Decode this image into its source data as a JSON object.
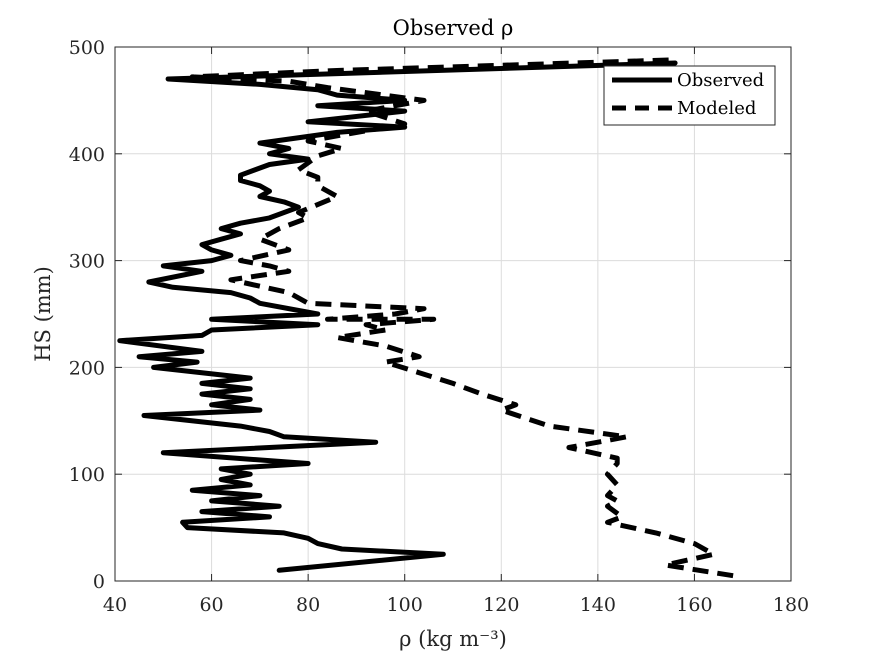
{
  "chart_data": {
    "type": "line",
    "title": "Observed ρ",
    "xlabel": "ρ (kg m⁻³)",
    "ylabel": "HS (mm)",
    "xlim": [
      40,
      180
    ],
    "ylim": [
      0,
      500
    ],
    "xticks": [
      40,
      60,
      80,
      100,
      120,
      140,
      160,
      180
    ],
    "yticks": [
      0,
      100,
      200,
      300,
      400,
      500
    ],
    "grid": true,
    "legend_position": "top-right",
    "series": [
      {
        "name": "Observed",
        "style": "solid",
        "color": "#000000",
        "points": [
          [
            74,
            10
          ],
          [
            108,
            25
          ],
          [
            87,
            30
          ],
          [
            82,
            35
          ],
          [
            80,
            40
          ],
          [
            75,
            45
          ],
          [
            55,
            50
          ],
          [
            54,
            55
          ],
          [
            72,
            60
          ],
          [
            58,
            65
          ],
          [
            74,
            70
          ],
          [
            60,
            75
          ],
          [
            70,
            80
          ],
          [
            56,
            85
          ],
          [
            68,
            90
          ],
          [
            62,
            95
          ],
          [
            68,
            100
          ],
          [
            62,
            105
          ],
          [
            80,
            110
          ],
          [
            50,
            120
          ],
          [
            94,
            130
          ],
          [
            75,
            135
          ],
          [
            72,
            140
          ],
          [
            66,
            145
          ],
          [
            46,
            155
          ],
          [
            70,
            160
          ],
          [
            60,
            165
          ],
          [
            68,
            170
          ],
          [
            58,
            175
          ],
          [
            68,
            180
          ],
          [
            58,
            185
          ],
          [
            68,
            190
          ],
          [
            48,
            200
          ],
          [
            57,
            205
          ],
          [
            45,
            210
          ],
          [
            58,
            215
          ],
          [
            41,
            225
          ],
          [
            58,
            230
          ],
          [
            60,
            235
          ],
          [
            82,
            240
          ],
          [
            60,
            245
          ],
          [
            82,
            250
          ],
          [
            70,
            260
          ],
          [
            68,
            265
          ],
          [
            64,
            270
          ],
          [
            52,
            275
          ],
          [
            47,
            280
          ],
          [
            58,
            290
          ],
          [
            50,
            295
          ],
          [
            60,
            300
          ],
          [
            64,
            305
          ],
          [
            60,
            310
          ],
          [
            58,
            315
          ],
          [
            62,
            320
          ],
          [
            66,
            325
          ],
          [
            62,
            330
          ],
          [
            66,
            335
          ],
          [
            72,
            340
          ],
          [
            78,
            350
          ],
          [
            75,
            355
          ],
          [
            70,
            360
          ],
          [
            72,
            365
          ],
          [
            70,
            370
          ],
          [
            66,
            375
          ],
          [
            66,
            380
          ],
          [
            72,
            390
          ],
          [
            80,
            395
          ],
          [
            72,
            400
          ],
          [
            76,
            405
          ],
          [
            70,
            410
          ],
          [
            86,
            420
          ],
          [
            100,
            425
          ],
          [
            80,
            430
          ],
          [
            100,
            440
          ],
          [
            82,
            445
          ],
          [
            100,
            450
          ],
          [
            86,
            455
          ],
          [
            82,
            460
          ],
          [
            70,
            465
          ],
          [
            51,
            470
          ],
          [
            156,
            485
          ]
        ]
      },
      {
        "name": "Modeled",
        "style": "dashed",
        "color": "#000000",
        "points": [
          [
            168,
            5
          ],
          [
            154,
            15
          ],
          [
            164,
            25
          ],
          [
            160,
            35
          ],
          [
            152,
            45
          ],
          [
            142,
            55
          ],
          [
            145,
            60
          ],
          [
            142,
            70
          ],
          [
            144,
            75
          ],
          [
            142,
            80
          ],
          [
            144,
            90
          ],
          [
            142,
            100
          ],
          [
            144,
            110
          ],
          [
            144,
            115
          ],
          [
            134,
            125
          ],
          [
            140,
            130
          ],
          [
            146,
            135
          ],
          [
            130,
            145
          ],
          [
            120,
            160
          ],
          [
            123,
            165
          ],
          [
            116,
            175
          ],
          [
            110,
            185
          ],
          [
            103,
            195
          ],
          [
            96,
            205
          ],
          [
            103,
            210
          ],
          [
            96,
            220
          ],
          [
            86,
            228
          ],
          [
            96,
            235
          ],
          [
            92,
            240
          ],
          [
            106,
            245
          ],
          [
            84,
            245
          ],
          [
            98,
            250
          ],
          [
            104,
            255
          ],
          [
            80,
            260
          ],
          [
            76,
            270
          ],
          [
            64,
            282
          ],
          [
            76,
            290
          ],
          [
            72,
            295
          ],
          [
            66,
            300
          ],
          [
            76,
            310
          ],
          [
            70,
            320
          ],
          [
            74,
            330
          ],
          [
            80,
            340
          ],
          [
            78,
            345
          ],
          [
            86,
            360
          ],
          [
            82,
            370
          ],
          [
            82,
            378
          ],
          [
            78,
            385
          ],
          [
            82,
            398
          ],
          [
            87,
            405
          ],
          [
            80,
            412
          ],
          [
            100,
            428
          ],
          [
            92,
            440
          ],
          [
            104,
            450
          ],
          [
            84,
            462
          ],
          [
            76,
            468
          ],
          [
            56,
            472
          ],
          [
            86,
            478
          ],
          [
            156,
            488
          ]
        ]
      }
    ]
  }
}
